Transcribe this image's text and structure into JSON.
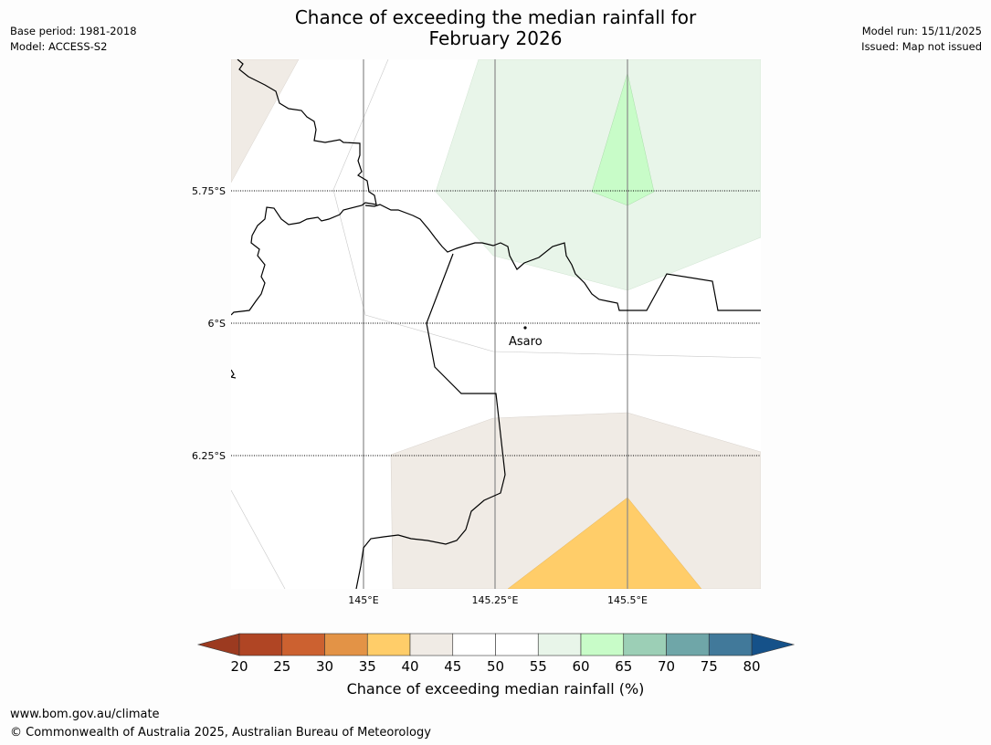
{
  "title": {
    "line1": "Chance of exceeding the median rainfall for",
    "line2": "February 2026"
  },
  "meta": {
    "base_period": "Base period: 1981-2018",
    "model": "Model: ACCESS-S2",
    "model_run": "Model run: 15/11/2025",
    "issued": "Issued: Map not issued"
  },
  "map": {
    "place_label": "Asaro",
    "lat_labels": [
      "5.75°S",
      "6°S",
      "6.25°S"
    ],
    "lon_labels": [
      "145°E",
      "145.25°E",
      "145.5°E"
    ]
  },
  "legend": {
    "title": "Chance of exceeding median rainfall (%)",
    "ticks": [
      "20",
      "25",
      "30",
      "35",
      "40",
      "45",
      "50",
      "55",
      "60",
      "65",
      "70",
      "75",
      "80"
    ],
    "colors": [
      "#b04524",
      "#cc6130",
      "#e39346",
      "#ffcd69",
      "#f0ebe5",
      "#ffffff",
      "#ffffff",
      "#e8f5e9",
      "#c8fcc8",
      "#9ccfb6",
      "#6fa6a8",
      "#41799a"
    ],
    "under_color": "#9c3a20",
    "over_color": "#155189"
  },
  "footer": {
    "url": "www.bom.gov.au/climate",
    "copyright": "© Commonwealth of Australia 2025, Australian Bureau of Meteorology"
  }
}
